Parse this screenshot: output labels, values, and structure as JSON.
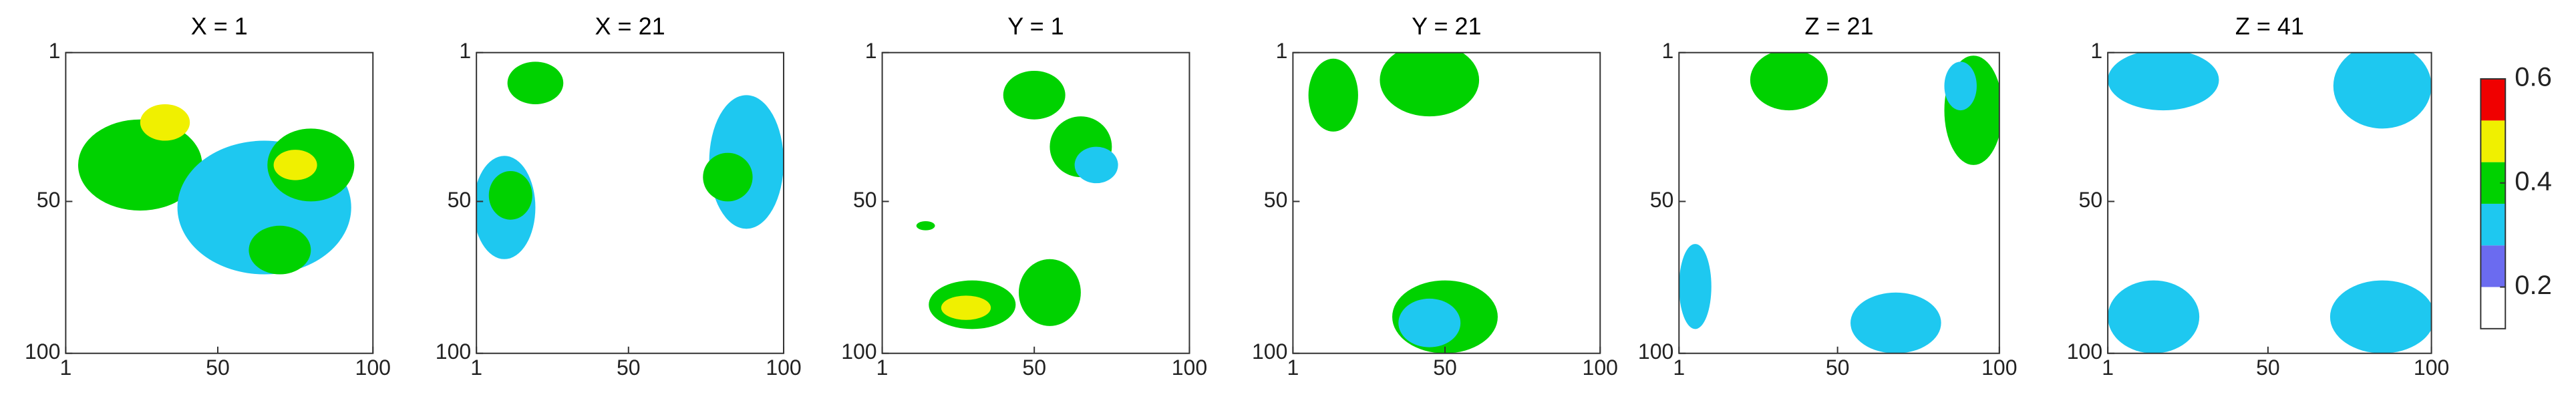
{
  "chart_data": [
    {
      "type": "heatmap",
      "title": "X = 1",
      "xlim": [
        1,
        100
      ],
      "ylim": [
        1,
        100
      ],
      "y_reversed": true,
      "xticks": [
        1,
        50,
        100
      ],
      "yticks": [
        1,
        50,
        100
      ],
      "regions": [
        {
          "x": 25,
          "y": 38,
          "rx": 20,
          "ry": 15,
          "v": 0.4
        },
        {
          "x": 33,
          "y": 24,
          "rx": 8,
          "ry": 6,
          "v": 0.48
        },
        {
          "x": 65,
          "y": 52,
          "rx": 28,
          "ry": 22,
          "v": 0.32
        },
        {
          "x": 80,
          "y": 38,
          "rx": 14,
          "ry": 12,
          "v": 0.4
        },
        {
          "x": 75,
          "y": 38,
          "rx": 7,
          "ry": 5,
          "v": 0.48
        },
        {
          "x": 70,
          "y": 66,
          "rx": 10,
          "ry": 8,
          "v": 0.4
        }
      ]
    },
    {
      "type": "heatmap",
      "title": "X = 21",
      "xlim": [
        1,
        100
      ],
      "ylim": [
        1,
        100
      ],
      "y_reversed": true,
      "xticks": [
        1,
        50,
        100
      ],
      "yticks": [
        1,
        50,
        100
      ],
      "regions": [
        {
          "x": 20,
          "y": 11,
          "rx": 9,
          "ry": 7,
          "v": 0.4
        },
        {
          "x": 10,
          "y": 52,
          "rx": 10,
          "ry": 17,
          "v": 0.32
        },
        {
          "x": 12,
          "y": 48,
          "rx": 7,
          "ry": 8,
          "v": 0.4
        },
        {
          "x": 88,
          "y": 37,
          "rx": 12,
          "ry": 22,
          "v": 0.32
        },
        {
          "x": 82,
          "y": 42,
          "rx": 8,
          "ry": 8,
          "v": 0.4
        }
      ]
    },
    {
      "type": "heatmap",
      "title": "Y = 1",
      "xlim": [
        1,
        100
      ],
      "ylim": [
        1,
        100
      ],
      "y_reversed": true,
      "xticks": [
        1,
        50,
        100
      ],
      "yticks": [
        1,
        50,
        100
      ],
      "regions": [
        {
          "x": 50,
          "y": 15,
          "rx": 10,
          "ry": 8,
          "v": 0.4
        },
        {
          "x": 65,
          "y": 32,
          "rx": 10,
          "ry": 10,
          "v": 0.4
        },
        {
          "x": 70,
          "y": 38,
          "rx": 7,
          "ry": 6,
          "v": 0.32
        },
        {
          "x": 30,
          "y": 84,
          "rx": 14,
          "ry": 8,
          "v": 0.4
        },
        {
          "x": 28,
          "y": 85,
          "rx": 8,
          "ry": 4,
          "v": 0.48
        },
        {
          "x": 55,
          "y": 80,
          "rx": 10,
          "ry": 11,
          "v": 0.4
        },
        {
          "x": 15,
          "y": 58,
          "rx": 3,
          "ry": 1.5,
          "v": 0.4
        }
      ]
    },
    {
      "type": "heatmap",
      "title": "Y = 21",
      "xlim": [
        1,
        100
      ],
      "ylim": [
        1,
        100
      ],
      "y_reversed": true,
      "xticks": [
        1,
        50,
        100
      ],
      "yticks": [
        1,
        50,
        100
      ],
      "regions": [
        {
          "x": 14,
          "y": 15,
          "rx": 8,
          "ry": 12,
          "v": 0.4
        },
        {
          "x": 45,
          "y": 10,
          "rx": 16,
          "ry": 12,
          "v": 0.4
        },
        {
          "x": 50,
          "y": 88,
          "rx": 17,
          "ry": 12,
          "v": 0.4
        },
        {
          "x": 45,
          "y": 90,
          "rx": 10,
          "ry": 8,
          "v": 0.32
        }
      ]
    },
    {
      "type": "heatmap",
      "title": "Z = 21",
      "xlim": [
        1,
        100
      ],
      "ylim": [
        1,
        100
      ],
      "y_reversed": true,
      "xticks": [
        1,
        50,
        100
      ],
      "yticks": [
        1,
        50,
        100
      ],
      "regions": [
        {
          "x": 35,
          "y": 10,
          "rx": 12,
          "ry": 10,
          "v": 0.4
        },
        {
          "x": 92,
          "y": 20,
          "rx": 9,
          "ry": 18,
          "v": 0.4
        },
        {
          "x": 88,
          "y": 12,
          "rx": 5,
          "ry": 8,
          "v": 0.32
        },
        {
          "x": 6,
          "y": 78,
          "rx": 5,
          "ry": 14,
          "v": 0.32
        },
        {
          "x": 68,
          "y": 90,
          "rx": 14,
          "ry": 10,
          "v": 0.32
        }
      ]
    },
    {
      "type": "heatmap",
      "title": "Z = 41",
      "xlim": [
        1,
        100
      ],
      "ylim": [
        1,
        100
      ],
      "y_reversed": true,
      "xticks": [
        1,
        50,
        100
      ],
      "yticks": [
        1,
        50,
        100
      ],
      "regions": [
        {
          "x": 18,
          "y": 10,
          "rx": 17,
          "ry": 10,
          "v": 0.32
        },
        {
          "x": 85,
          "y": 12,
          "rx": 15,
          "ry": 14,
          "v": 0.32
        },
        {
          "x": 15,
          "y": 88,
          "rx": 14,
          "ry": 12,
          "v": 0.32
        },
        {
          "x": 85,
          "y": 88,
          "rx": 16,
          "ry": 12,
          "v": 0.32
        }
      ]
    },
    {
      "type": "colorbar",
      "clim": [
        0.12,
        0.6
      ],
      "ticks": [
        0.2,
        0.4,
        0.6
      ],
      "colors": [
        "#ffffff",
        "#6b6bf0",
        "#1ec8f0",
        "#00d200",
        "#f0f000",
        "#f00000"
      ]
    }
  ]
}
